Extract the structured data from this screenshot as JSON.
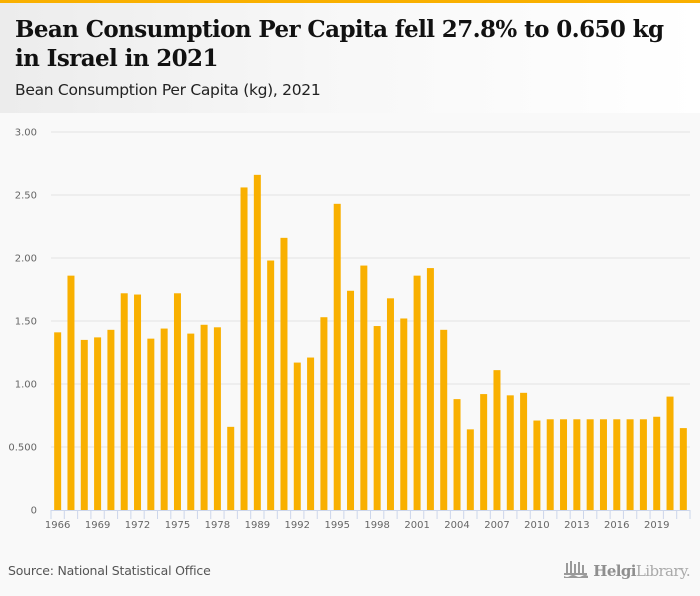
{
  "header": {
    "title": "Bean Consumption Per Capita fell 27.8% to 0.650 kg in Israel in 2021",
    "subtitle": "Bean Consumption Per Capita (kg), 2021"
  },
  "footer": {
    "source": "Source: National Statistical Office",
    "logo_bold": "Helgi",
    "logo_light": "Library."
  },
  "colors": {
    "accent": "#f9b000",
    "bar": "#f9b000",
    "grid": "#e3e3e3",
    "axis": "#ccd6eb"
  },
  "chart_data": {
    "type": "bar",
    "title": "Bean Consumption Per Capita fell 27.8% to 0.650 kg in Israel in 2021",
    "subtitle": "Bean Consumption Per Capita (kg), 2021",
    "xlabel": "",
    "ylabel": "",
    "ylim": [
      0,
      3.0
    ],
    "yticks": [
      0,
      0.5,
      1.0,
      1.5,
      2.0,
      2.5,
      3.0
    ],
    "ytick_labels": [
      "0",
      "0.500",
      "1.00",
      "1.50",
      "2.00",
      "2.50",
      "3.00"
    ],
    "grid": true,
    "legend": "none",
    "xtick_every": 3,
    "categories": [
      "1966",
      "1967",
      "1968",
      "1969",
      "1970",
      "1971",
      "1972",
      "1973",
      "1974",
      "1975",
      "1976",
      "1977",
      "1978",
      "1979",
      "1988",
      "1989",
      "1990",
      "1991",
      "1992",
      "1993",
      "1994",
      "1995",
      "1996",
      "1997",
      "1998",
      "1999",
      "2000",
      "2001",
      "2002",
      "2003",
      "2004",
      "2005",
      "2006",
      "2007",
      "2008",
      "2009",
      "2010",
      "2011",
      "2012",
      "2013",
      "2014",
      "2015",
      "2016",
      "2017",
      "2018",
      "2019",
      "2020",
      "2021"
    ],
    "series": [
      {
        "name": "Bean Consumption Per Capita (kg)",
        "values": [
          1.41,
          1.86,
          1.35,
          1.37,
          1.43,
          1.72,
          1.71,
          1.36,
          1.44,
          1.72,
          1.4,
          1.47,
          1.45,
          0.66,
          2.56,
          2.66,
          1.98,
          2.16,
          1.17,
          1.21,
          1.53,
          2.43,
          1.74,
          1.94,
          1.46,
          1.68,
          1.52,
          1.86,
          1.92,
          1.43,
          0.88,
          0.64,
          0.92,
          1.11,
          0.91,
          0.93,
          0.71,
          0.72,
          0.72,
          0.72,
          0.72,
          0.72,
          0.72,
          0.72,
          0.72,
          0.74,
          0.9,
          0.65
        ]
      }
    ]
  }
}
